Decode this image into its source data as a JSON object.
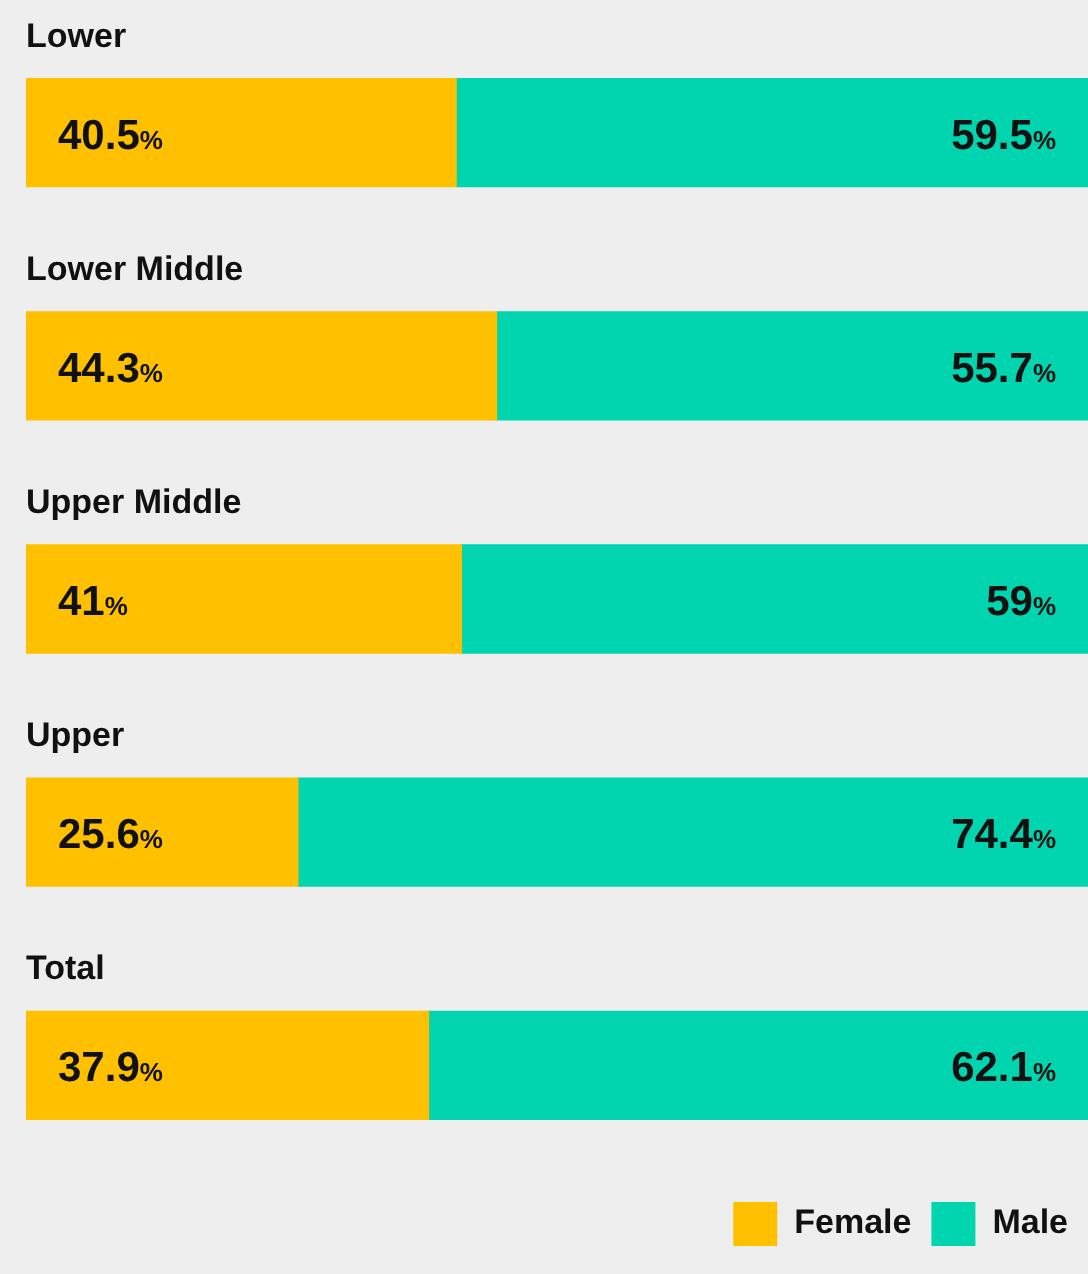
{
  "chart_data": {
    "type": "bar",
    "orientation": "horizontal",
    "stacked": true,
    "categories": [
      "Lower",
      "Lower Middle",
      "Upper Middle",
      "Upper",
      "Total"
    ],
    "series": [
      {
        "name": "Female",
        "color": "#ffc000",
        "values": [
          40.5,
          44.3,
          41,
          25.6,
          37.9
        ],
        "value_labels": [
          "40.5%",
          "44.3%",
          "41%",
          "25.6%",
          "37.9%"
        ]
      },
      {
        "name": "Male",
        "color": "#00d5b0",
        "values": [
          59.5,
          55.7,
          59,
          74.4,
          62.1
        ],
        "value_labels": [
          "59.5%",
          "55.7%",
          "59%",
          "74.4%",
          "62.1%"
        ]
      }
    ],
    "legend": "bottom right"
  }
}
